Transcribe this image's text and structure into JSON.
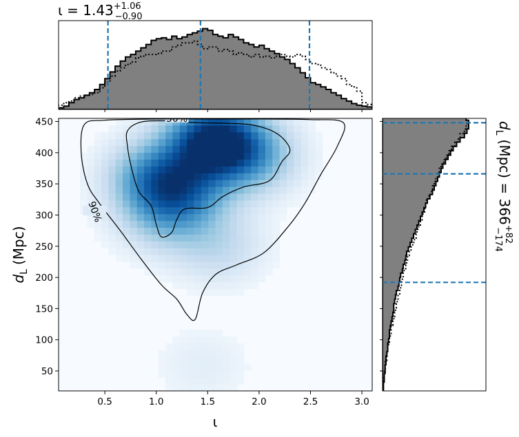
{
  "chart_data": [
    {
      "type": "heatmap",
      "panel": "joint",
      "xlabel": "ι",
      "ylabel_main": "d",
      "ylabel_sub": "L",
      "ylabel_unit": "(Mpc)",
      "xlim": [
        0.05,
        3.1
      ],
      "ylim": [
        18,
        455
      ],
      "xticks": [
        0.5,
        1.0,
        1.5,
        2.0,
        2.5,
        3.0
      ],
      "xticklabels": [
        "0.5",
        "1.0",
        "1.5",
        "2.0",
        "2.5",
        "3.0"
      ],
      "yticks": [
        50,
        100,
        150,
        200,
        250,
        300,
        350,
        400,
        450
      ],
      "yticklabels": [
        "50",
        "100",
        "150",
        "200",
        "250",
        "300",
        "350",
        "400",
        "450"
      ],
      "colormap": "Blues",
      "density_peaks": [
        {
          "x": 1.55,
          "y": 420,
          "weight": 1.0
        },
        {
          "x": 1.0,
          "y": 360,
          "weight": 0.55
        },
        {
          "x": 1.3,
          "y": 340,
          "weight": 0.4
        },
        {
          "x": 1.9,
          "y": 395,
          "weight": 0.45
        },
        {
          "x": 1.1,
          "y": 300,
          "weight": 0.3
        },
        {
          "x": 1.6,
          "y": 250,
          "weight": 0.18
        },
        {
          "x": 1.45,
          "y": 60,
          "weight": 0.06
        }
      ],
      "contours": [
        {
          "label": "50%",
          "label_at": [
            1.2,
            454
          ],
          "points": [
            [
              0.72,
              435
            ],
            [
              0.85,
              449
            ],
            [
              1.1,
              451
            ],
            [
              1.4,
              448
            ],
            [
              1.7,
              447
            ],
            [
              1.95,
              444
            ],
            [
              2.18,
              430
            ],
            [
              2.3,
              405
            ],
            [
              2.22,
              385
            ],
            [
              2.1,
              355
            ],
            [
              1.85,
              345
            ],
            [
              1.65,
              330
            ],
            [
              1.5,
              312
            ],
            [
              1.28,
              310
            ],
            [
              1.2,
              293
            ],
            [
              1.15,
              272
            ],
            [
              1.05,
              265
            ],
            [
              1.0,
              285
            ],
            [
              0.95,
              315
            ],
            [
              0.83,
              338
            ],
            [
              0.76,
              375
            ],
            [
              0.72,
              410
            ]
          ]
        },
        {
          "label": "90%",
          "label_at": [
            0.4,
            305
          ],
          "points": [
            [
              0.3,
              445
            ],
            [
              0.5,
              452
            ],
            [
              1.0,
              454
            ],
            [
              1.5,
              454
            ],
            [
              2.0,
              454
            ],
            [
              2.5,
              453
            ],
            [
              2.82,
              448
            ],
            [
              2.76,
              410
            ],
            [
              2.6,
              365
            ],
            [
              2.45,
              320
            ],
            [
              2.3,
              285
            ],
            [
              2.05,
              240
            ],
            [
              1.78,
              220
            ],
            [
              1.58,
              205
            ],
            [
              1.45,
              175
            ],
            [
              1.38,
              133
            ],
            [
              1.3,
              140
            ],
            [
              1.2,
              165
            ],
            [
              1.05,
              188
            ],
            [
              0.85,
              230
            ],
            [
              0.65,
              275
            ],
            [
              0.45,
              318
            ],
            [
              0.33,
              350
            ],
            [
              0.27,
              400
            ]
          ]
        }
      ]
    },
    {
      "type": "histogram",
      "panel": "top",
      "title_prefix": "ι = 1.43",
      "title_sup": "+1.06",
      "title_sub": "−0.90",
      "xlim": [
        0.05,
        3.1
      ],
      "bin_edges_start": 0.05,
      "bin_width": 0.05,
      "filled": [
        0.02,
        0.04,
        0.08,
        0.12,
        0.14,
        0.17,
        0.2,
        0.24,
        0.3,
        0.37,
        0.45,
        0.52,
        0.58,
        0.63,
        0.66,
        0.7,
        0.74,
        0.78,
        0.83,
        0.85,
        0.86,
        0.84,
        0.88,
        0.85,
        0.87,
        0.9,
        0.92,
        0.94,
        0.97,
        0.95,
        0.9,
        0.88,
        0.86,
        0.9,
        0.87,
        0.84,
        0.8,
        0.78,
        0.75,
        0.77,
        0.73,
        0.7,
        0.67,
        0.63,
        0.6,
        0.55,
        0.5,
        0.44,
        0.38,
        0.32,
        0.3,
        0.27,
        0.24,
        0.2,
        0.17,
        0.13,
        0.1,
        0.07,
        0.05,
        0.04,
        0.03
      ],
      "dotted": [
        0.05,
        0.08,
        0.1,
        0.14,
        0.16,
        0.17,
        0.18,
        0.2,
        0.26,
        0.33,
        0.4,
        0.46,
        0.5,
        0.54,
        0.57,
        0.62,
        0.64,
        0.66,
        0.66,
        0.67,
        0.7,
        0.7,
        0.75,
        0.77,
        0.8,
        0.8,
        0.82,
        0.78,
        0.73,
        0.75,
        0.75,
        0.7,
        0.72,
        0.7,
        0.66,
        0.68,
        0.66,
        0.63,
        0.66,
        0.63,
        0.64,
        0.62,
        0.64,
        0.66,
        0.64,
        0.63,
        0.66,
        0.64,
        0.6,
        0.55,
        0.54,
        0.5,
        0.48,
        0.44,
        0.4,
        0.37,
        0.3,
        0.27,
        0.22,
        0.08,
        0.06
      ],
      "quantile_lines": [
        0.53,
        1.43,
        2.49
      ]
    },
    {
      "type": "histogram",
      "panel": "right",
      "orientation": "horizontal",
      "label_main": "d",
      "label_sub": "L",
      "label_rest": "(Mpc) = 366",
      "label_sup": "+82",
      "label_subscript": "−174",
      "ylim": [
        18,
        455
      ],
      "bin_edges_start": 18,
      "bin_width": 7,
      "filled": [
        0.01,
        0.01,
        0.02,
        0.02,
        0.03,
        0.03,
        0.04,
        0.04,
        0.05,
        0.06,
        0.06,
        0.07,
        0.08,
        0.08,
        0.09,
        0.1,
        0.11,
        0.12,
        0.13,
        0.13,
        0.14,
        0.15,
        0.16,
        0.18,
        0.19,
        0.2,
        0.21,
        0.23,
        0.24,
        0.26,
        0.27,
        0.28,
        0.3,
        0.32,
        0.34,
        0.36,
        0.38,
        0.4,
        0.42,
        0.44,
        0.46,
        0.48,
        0.5,
        0.52,
        0.55,
        0.58,
        0.6,
        0.62,
        0.64,
        0.66,
        0.68,
        0.7,
        0.73,
        0.76,
        0.79,
        0.82,
        0.86,
        0.9,
        0.95,
        0.98,
        1.0,
        1.0,
        0.97
      ],
      "dotted": [
        0.01,
        0.01,
        0.01,
        0.02,
        0.02,
        0.03,
        0.03,
        0.05,
        0.05,
        0.06,
        0.07,
        0.08,
        0.09,
        0.1,
        0.1,
        0.12,
        0.13,
        0.14,
        0.15,
        0.16,
        0.17,
        0.18,
        0.2,
        0.21,
        0.22,
        0.23,
        0.24,
        0.25,
        0.27,
        0.28,
        0.29,
        0.31,
        0.33,
        0.35,
        0.37,
        0.39,
        0.4,
        0.42,
        0.44,
        0.46,
        0.47,
        0.49,
        0.5,
        0.51,
        0.54,
        0.57,
        0.58,
        0.6,
        0.62,
        0.64,
        0.66,
        0.68,
        0.71,
        0.74,
        0.77,
        0.8,
        0.84,
        0.88,
        0.9,
        0.95,
        0.97,
        0.98,
        0.97
      ],
      "quantile_lines": [
        192,
        366,
        448
      ]
    }
  ]
}
